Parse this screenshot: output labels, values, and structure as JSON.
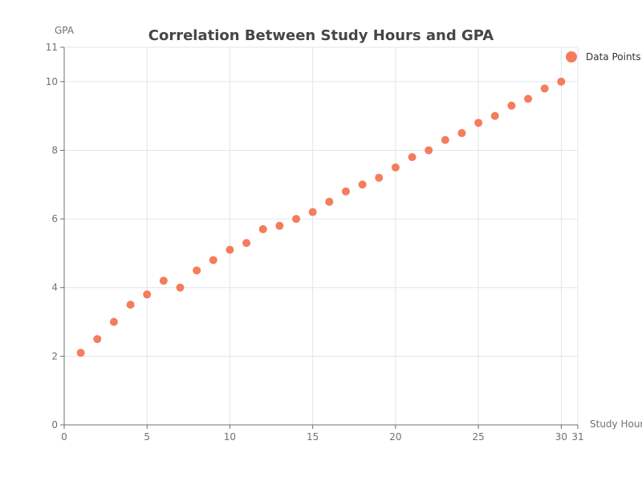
{
  "chart_data": {
    "type": "scatter",
    "title": "Correlation Between Study Hours and GPA",
    "xlabel": "Study Hours",
    "ylabel": "GPA",
    "xlim": [
      0,
      31
    ],
    "ylim": [
      0,
      11
    ],
    "x_ticks": [
      0,
      5,
      10,
      15,
      20,
      25,
      30,
      31
    ],
    "y_ticks": [
      0,
      2,
      4,
      6,
      8,
      10,
      11
    ],
    "grid": true,
    "legend_position": "top-right",
    "series": [
      {
        "name": "Data Points",
        "color": "#f57c5c",
        "points": [
          [
            1,
            2.1
          ],
          [
            2,
            2.5
          ],
          [
            3,
            3.0
          ],
          [
            4,
            3.5
          ],
          [
            5,
            3.8
          ],
          [
            6,
            4.2
          ],
          [
            7,
            4.0
          ],
          [
            8,
            4.5
          ],
          [
            9,
            4.8
          ],
          [
            10,
            5.1
          ],
          [
            11,
            5.3
          ],
          [
            12,
            5.7
          ],
          [
            13,
            5.8
          ],
          [
            14,
            6.0
          ],
          [
            15,
            6.2
          ],
          [
            16,
            6.5
          ],
          [
            17,
            6.8
          ],
          [
            18,
            7.0
          ],
          [
            19,
            7.2
          ],
          [
            20,
            7.5
          ],
          [
            21,
            7.8
          ],
          [
            22,
            8.0
          ],
          [
            23,
            8.3
          ],
          [
            24,
            8.5
          ],
          [
            25,
            8.8
          ],
          [
            26,
            9.0
          ],
          [
            27,
            9.3
          ],
          [
            28,
            9.5
          ],
          [
            29,
            9.8
          ],
          [
            30,
            10.0
          ]
        ]
      }
    ]
  }
}
